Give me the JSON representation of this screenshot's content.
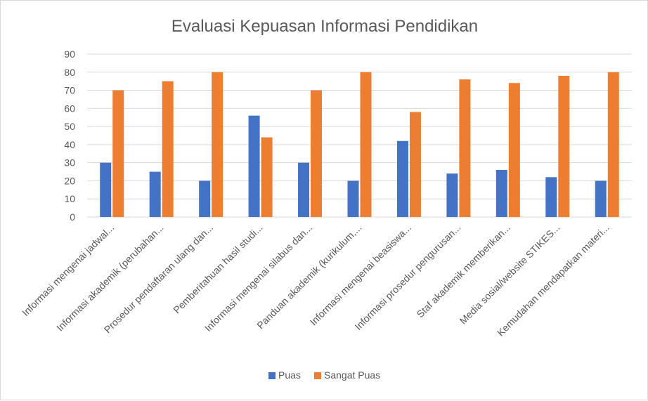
{
  "chart_data": {
    "type": "bar",
    "title": "Evaluasi Kepuasan Informasi Pendidikan",
    "xlabel": "",
    "ylabel": "",
    "ylim": [
      0,
      90
    ],
    "yticks": [
      0,
      10,
      20,
      30,
      40,
      50,
      60,
      70,
      80,
      90
    ],
    "grid": true,
    "legend": "bottom",
    "categories": [
      "Informasi mengenai jadwal...",
      "Informasi akademik (perubahan...",
      "Prosedur pendaftaran ulang dan...",
      "Pemberitahuan hasil studi...",
      "Informasi mengenai silabus dan...",
      "Panduan akademik (kurikulum,...",
      "Informasi mengenai beasiswa...",
      "Informasi prosedur pengurusan...",
      "Staf akademik memberikan...",
      "Media sosial/website STIKES...",
      "Kemudahan mendapatkan materi..."
    ],
    "series": [
      {
        "name": "Puas",
        "color": "#4472c4",
        "values": [
          30,
          25,
          20,
          56,
          30,
          20,
          42,
          24,
          26,
          22,
          20
        ]
      },
      {
        "name": "Sangat Puas",
        "color": "#ed7d31",
        "values": [
          70,
          75,
          80,
          44,
          70,
          80,
          58,
          76,
          74,
          78,
          80
        ]
      }
    ]
  }
}
